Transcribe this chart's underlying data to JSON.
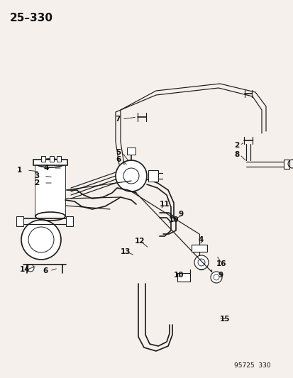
{
  "title": "25–330",
  "footer": "95725  330",
  "bg_color": "#f5f0eb",
  "line_color": "#1a1a1a",
  "label_color": "#111111",
  "title_fontsize": 11,
  "label_fontsize": 7.5,
  "footer_fontsize": 6.5
}
